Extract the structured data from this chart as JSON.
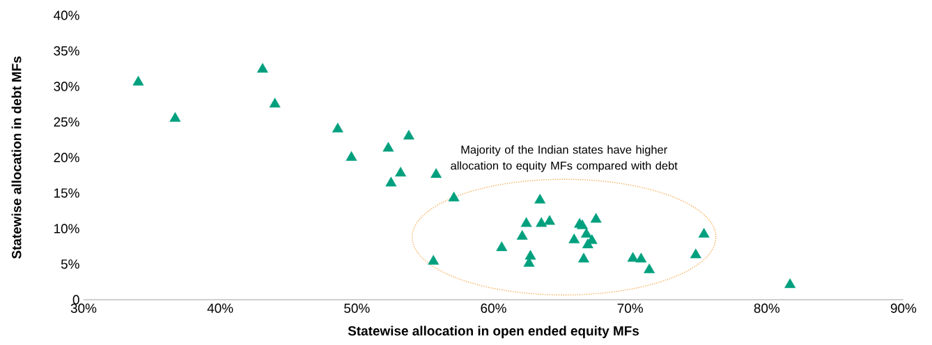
{
  "chart_data": {
    "type": "scatter",
    "xlabel": "Statewise allocation in open ended equity MFs",
    "ylabel": "Statewise allocation in debt MFs",
    "annotations": [
      "Majority of the Indian states have higher allocation to equity MFs compared with debt"
    ],
    "marker": "triangle",
    "color": "#00a07e",
    "x": [
      34.0,
      36.7,
      43.1,
      44.0,
      48.6,
      49.6,
      52.3,
      53.8,
      52.5,
      53.2,
      55.8,
      57.1,
      55.6,
      60.6,
      62.1,
      62.4,
      62.7,
      62.6,
      63.4,
      63.5,
      64.1,
      66.3,
      66.5,
      65.9,
      66.8,
      67.2,
      66.9,
      66.6,
      67.5,
      70.2,
      70.8,
      71.4,
      74.8,
      75.4,
      81.7
    ],
    "values": [
      30.6,
      25.5,
      32.4,
      27.5,
      24.0,
      20.0,
      21.3,
      23.0,
      16.4,
      17.8,
      17.6,
      14.3,
      5.4,
      7.3,
      8.9,
      10.7,
      6.1,
      5.1,
      14.0,
      10.7,
      11.0,
      10.6,
      10.4,
      8.4,
      9.2,
      8.3,
      7.7,
      5.7,
      11.3,
      5.8,
      5.7,
      4.2,
      6.3,
      9.2,
      2.1
    ],
    "xlim": [
      30,
      90
    ],
    "xticks": [
      {
        "value": 30,
        "label": "30%"
      },
      {
        "value": 40,
        "label": "40%"
      },
      {
        "value": 50,
        "label": "50%"
      },
      {
        "value": 60,
        "label": "60%"
      },
      {
        "value": 70,
        "label": "70%"
      },
      {
        "value": 80,
        "label": "80%"
      },
      {
        "value": 90,
        "label": "90%"
      }
    ],
    "ylim": [
      0,
      40
    ],
    "yticks": [
      0,
      {
        "value": 5,
        "label": "5%"
      },
      {
        "value": 10,
        "label": "10%"
      },
      {
        "value": 15,
        "label": "15%"
      },
      {
        "value": 20,
        "label": "20%"
      },
      {
        "value": 25,
        "label": "25%"
      },
      {
        "value": 30,
        "label": "30%"
      },
      {
        "value": 35,
        "label": "35%"
      },
      {
        "value": 40,
        "label": "40%"
      }
    ],
    "grid": false
  }
}
